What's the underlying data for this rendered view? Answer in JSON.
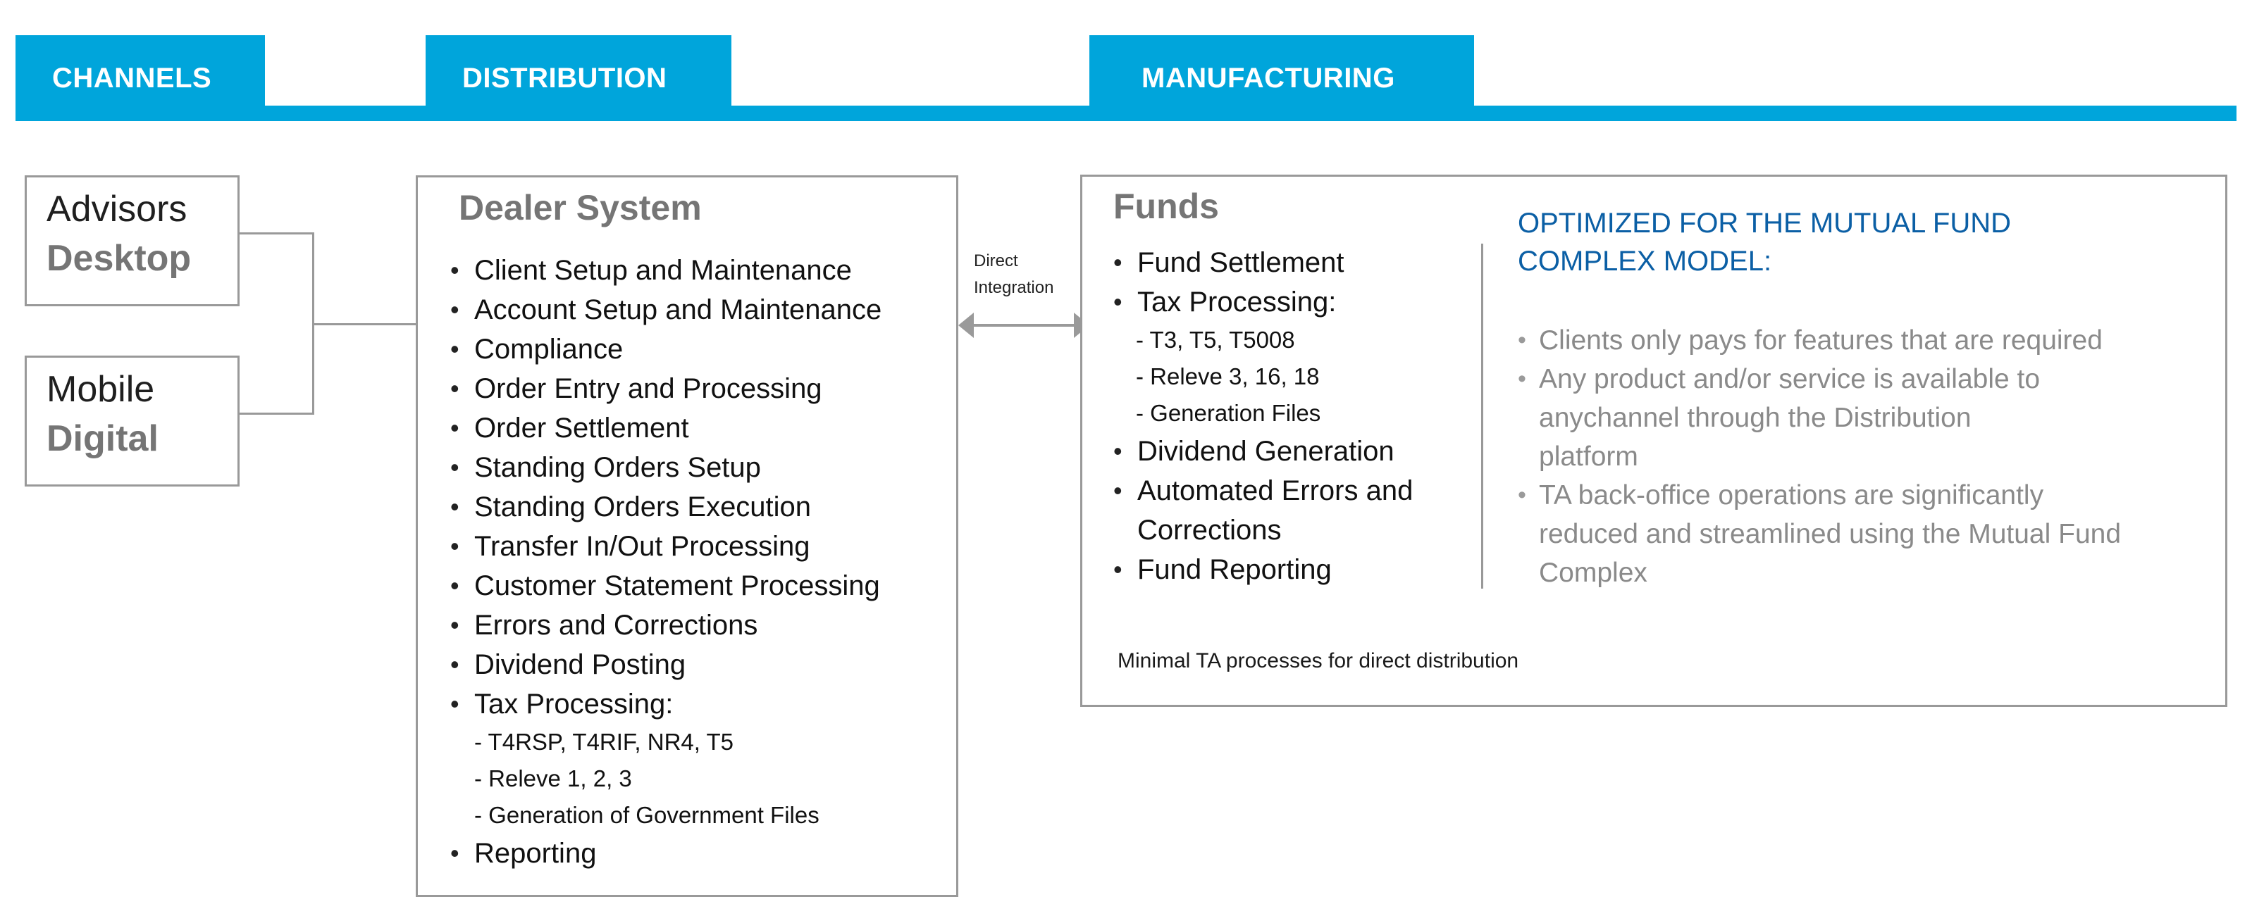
{
  "header": {
    "tabs": [
      {
        "label": "CHANNELS"
      },
      {
        "label": "DISTRIBUTION"
      },
      {
        "label": "MANUFACTURING"
      }
    ]
  },
  "channels": [
    {
      "line1": "Advisors",
      "line2": "Desktop"
    },
    {
      "line1": "Mobile",
      "line2": "Digital"
    }
  ],
  "dealer": {
    "title": "Dealer System",
    "items": [
      "Client Setup and Maintenance",
      "Account Setup and Maintenance",
      "Compliance",
      "Order Entry and Processing",
      "Order Settlement",
      "Standing Orders Setup",
      "Standing Orders Execution",
      "Transfer In/Out Processing",
      "Customer Statement Processing",
      "Errors and Corrections",
      "Dividend Posting",
      "Tax Processing:"
    ],
    "tax_sub": [
      "- T4RSP, T4RIF, NR4, T5",
      "- Releve 1, 2, 3",
      "- Generation of Government Files"
    ],
    "last_item": "Reporting"
  },
  "connector": {
    "label_line1": "Direct",
    "label_line2": "Integration"
  },
  "funds": {
    "title": "Funds",
    "items_a": [
      "Fund Settlement",
      "Tax Processing:"
    ],
    "tax_sub": [
      "- T3, T5, T5008",
      "- Releve 3, 16, 18",
      "- Generation Files"
    ],
    "items_b": [
      "Dividend Generation",
      "Automated Errors and Corrections",
      "Fund Reporting"
    ],
    "footnote": "Minimal TA processes for direct distribution"
  },
  "optimized": {
    "title_line1": "OPTIMIZED FOR THE MUTUAL FUND",
    "title_line2": "COMPLEX MODEL:",
    "bullets": [
      "Clients only pays for features that are required",
      "Any product and/or service is available to anychannel through the Distribution platform",
      "TA back-office operations are significantly reduced and streamlined using the Mutual Fund Complex"
    ]
  },
  "colors": {
    "accent": "#00a5db",
    "heading_blue": "#0b5fa5",
    "border_gray": "#999999",
    "muted_text": "#8a8a8a"
  }
}
